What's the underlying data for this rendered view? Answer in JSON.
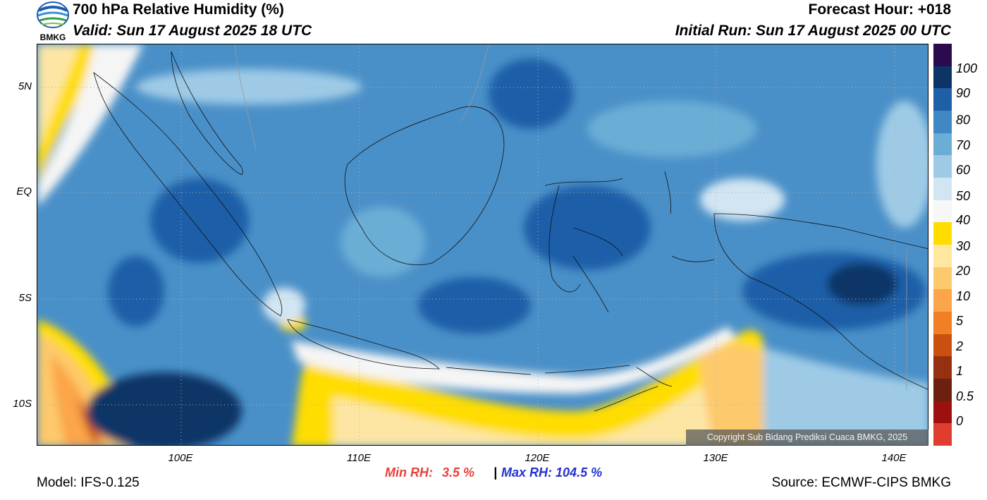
{
  "header": {
    "title": "700 hPa Relative Humidity (%)",
    "valid": "Valid: Sun 17 August 2025 18 UTC",
    "forecast_hour": "Forecast Hour: +018",
    "initial_run": "Initial Run: Sun 17 August 2025 00 UTC",
    "logo_text": "BMKG"
  },
  "axes": {
    "lat_ticks": [
      "5N",
      "EQ",
      "5S",
      "10S"
    ],
    "lon_ticks": [
      "100E",
      "110E",
      "120E",
      "130E",
      "140E"
    ]
  },
  "colorbar": {
    "labels": [
      "100",
      "90",
      "80",
      "70",
      "60",
      "50",
      "40",
      "30",
      "20",
      "10",
      "5",
      "2",
      "1",
      "0.5",
      "0"
    ],
    "colors": [
      "#2b0a4e",
      "#0d3466",
      "#1e5fa8",
      "#3f88c4",
      "#6aaed6",
      "#9ecae6",
      "#d2e5f3",
      "#f7f7f7",
      "#ffdd00",
      "#fee8a0",
      "#fdc96a",
      "#fca54a",
      "#f07f26",
      "#c95010",
      "#953010",
      "#6b2010",
      "#9e1010",
      "#e03c30"
    ]
  },
  "stats": {
    "min_label": "Min RH:",
    "min_value": "3.5 %",
    "separator": "|",
    "max_label": "Max RH:",
    "max_value": "104.5 %",
    "min_color": "#e8413b",
    "max_color": "#2233cc"
  },
  "footer": {
    "model": "Model: IFS-0.125",
    "source": "Source: ECMWF-CIPS BMKG",
    "copyright": "Copyright Sub Bidang Prediksi Cuaca BMKG, 2025"
  }
}
